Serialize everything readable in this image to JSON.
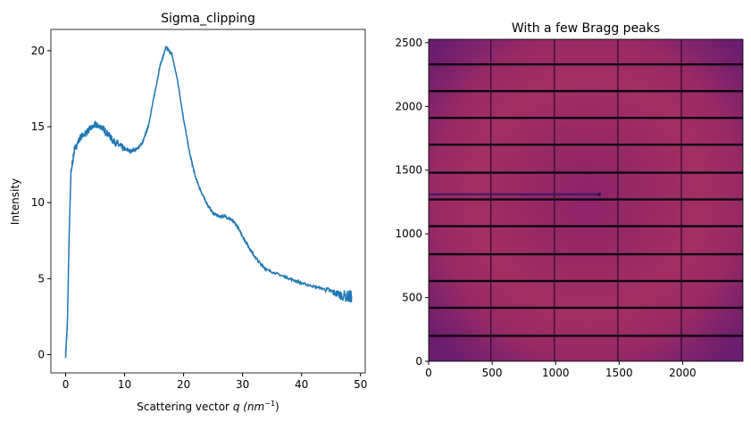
{
  "chart_data": [
    {
      "type": "line",
      "title": "Sigma_clipping",
      "xlabel": "Scattering vector q (nm⁻¹)",
      "xlabel_parts": {
        "main": "Scattering vector ",
        "var": "q",
        "unit": "(nm",
        "exp": "−1",
        "close": ")"
      },
      "ylabel": "Intensity",
      "xlim": [
        -2.5,
        50.8
      ],
      "ylim": [
        -1.2,
        21.4
      ],
      "xticks": [
        0,
        10,
        20,
        30,
        40,
        50
      ],
      "yticks": [
        0,
        5,
        10,
        15,
        20
      ],
      "grid": false,
      "color": "#1f77b4",
      "series": [
        {
          "x": [
            0,
            0.3,
            0.6,
            0.9,
            1.5,
            2.5,
            4,
            5,
            6,
            7,
            8,
            9,
            10,
            11,
            12,
            13,
            14,
            15,
            16,
            17,
            18,
            19,
            20,
            21,
            22,
            23,
            24,
            25,
            26,
            27,
            28,
            29,
            30,
            31,
            32,
            33,
            34,
            36,
            38,
            40,
            42,
            44,
            46,
            48,
            48.5
          ],
          "y": [
            0,
            2,
            8,
            12,
            13.5,
            14.3,
            14.8,
            15.1,
            15,
            14.6,
            14.1,
            13.8,
            13.5,
            13.4,
            13.5,
            13.9,
            15,
            17,
            19,
            20.2,
            19.8,
            18,
            15.5,
            13.3,
            11.7,
            10.7,
            9.9,
            9.3,
            9.1,
            9.1,
            8.9,
            8.5,
            7.8,
            7.1,
            6.5,
            6.0,
            5.6,
            5.3,
            5.0,
            4.7,
            4.5,
            4.3,
            4.0,
            3.8,
            3.9
          ]
        }
      ]
    },
    {
      "type": "heatmap",
      "title": "With a few Bragg peaks",
      "xlim": [
        0,
        2475
      ],
      "ylim": [
        0,
        2527
      ],
      "xticks": [
        0,
        500,
        1000,
        1500,
        2000
      ],
      "yticks": [
        0,
        500,
        1000,
        1500,
        2000,
        2500
      ],
      "colormap": "magma",
      "ring_center": [
        1250,
        1300
      ],
      "module_gaps_y": [
        200,
        420,
        630,
        840,
        1060,
        1270,
        1480,
        1700,
        1910,
        2120,
        2330
      ],
      "module_gaps_x": [
        490,
        990,
        1490,
        1990
      ],
      "beamstop_line": {
        "x": [
          0,
          1340
        ],
        "y": 1310
      }
    }
  ]
}
